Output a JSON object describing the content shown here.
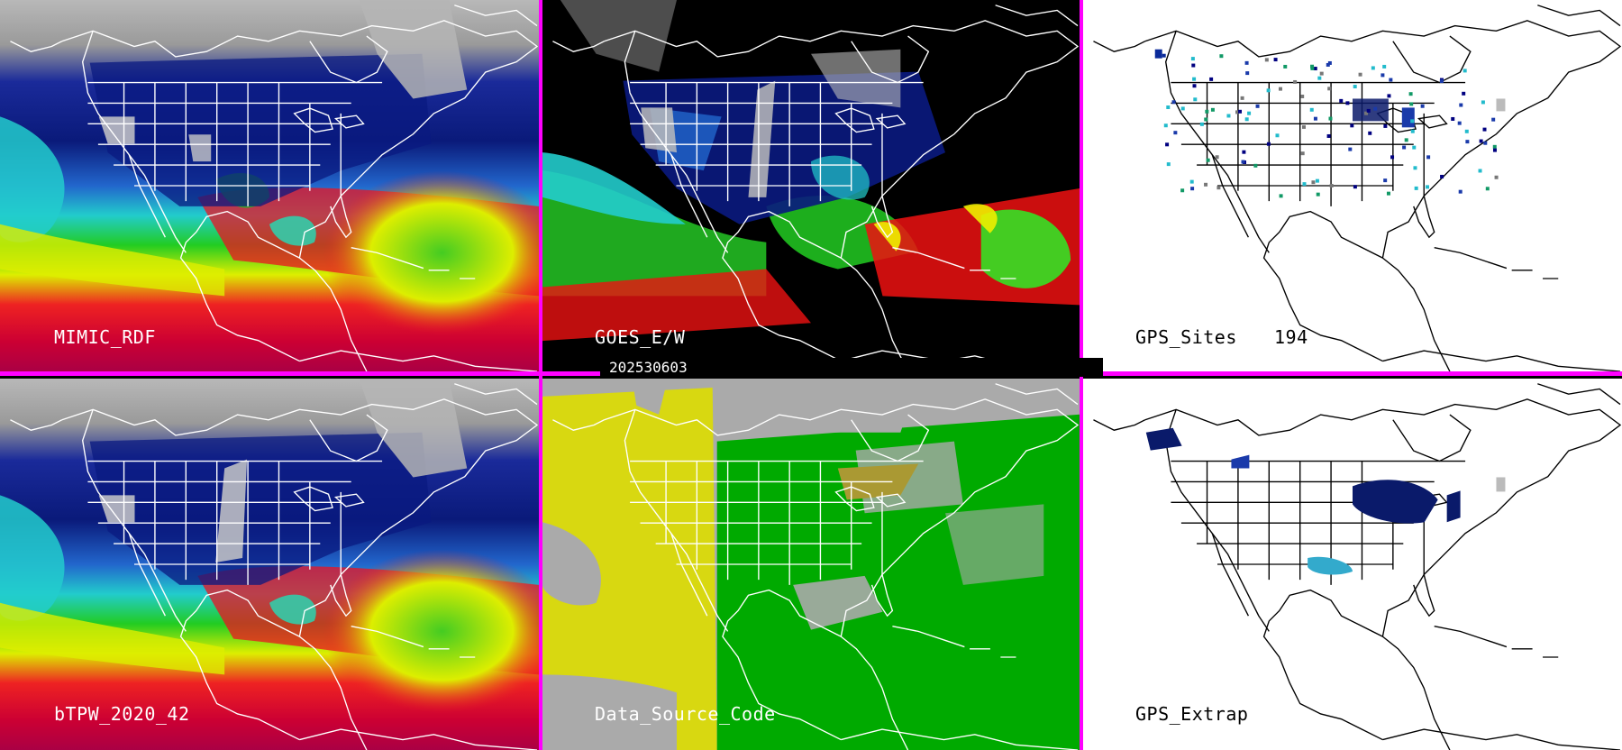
{
  "panels": [
    {
      "id": "p1",
      "label": "MIMIC_RDF",
      "label_color": "#ffffff",
      "style": "tpw"
    },
    {
      "id": "p2",
      "label": "GOES_E/W",
      "label_color": "#ffffff",
      "style": "goes"
    },
    {
      "id": "p3",
      "label": "GPS_Sites",
      "count": "194",
      "label_color": "#000000",
      "style": "gps"
    },
    {
      "id": "p4",
      "label": "bTPW_2020_42",
      "label_color": "#ffffff",
      "style": "tpw"
    },
    {
      "id": "p5",
      "label": "Data_Source_Code",
      "label_color": "#ffffff",
      "style": "dsc"
    },
    {
      "id": "p6",
      "label": "GPS_Extrap",
      "label_color": "#000000",
      "style": "gps"
    }
  ],
  "date_label": "202530603",
  "colors": {
    "separator": "#ff00ff",
    "background": "#000000"
  }
}
